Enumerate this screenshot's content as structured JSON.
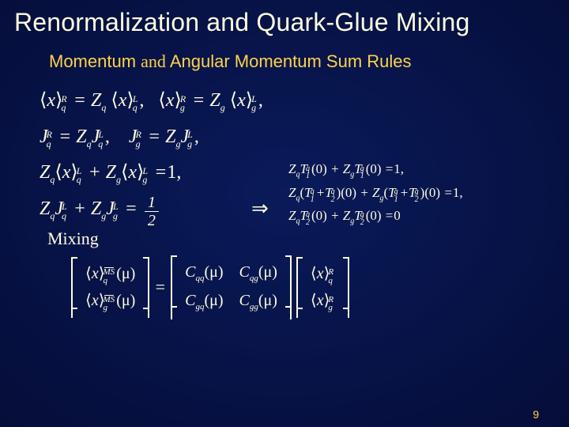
{
  "colors": {
    "title": "#fffde0",
    "accent": "#ffd24a",
    "body": "#fffde0",
    "bg_center": "#0a1a5a",
    "bg_mid": "#061040",
    "bg_edge": "#030820"
  },
  "typography": {
    "title_font": "Arial",
    "title_size_pt": 24,
    "subtitle_font": "Arial",
    "subtitle_size_pt": 17,
    "math_font": "Times New Roman",
    "math_size_pt": 18,
    "rhs_math_size_pt": 13
  },
  "title": "Renormalization and Quark-Glue Mixing",
  "subtitle": {
    "pre": "Momentum ",
    "and": "and",
    "post": " Angular Momentum Sum Rules"
  },
  "eq": {
    "x_q": "⟨x⟩",
    "Z_q": "Z",
    "J": "J",
    "line1_a": "=",
    "line1_b": ",",
    "line1_c": "=",
    "line1_d": ",",
    "line2_a": "=",
    "line2_b": ",",
    "line2_c": "=",
    "line2_d": ",",
    "line3_eq": "=",
    "line3_one": "1,",
    "line4_eq": "=",
    "frac_n": "1",
    "frac_d": "2",
    "arrow": "⇒"
  },
  "rhs": {
    "r1_eq": "=",
    "r1_end": "1,",
    "r2_eq": "=",
    "r2_end": "1,",
    "r3_eq": "=",
    "r3_end": "0"
  },
  "mixing_label": "Mixing",
  "matrix": {
    "eq": "=",
    "a": {
      "r1": "⟨x⟩",
      "r2": "⟨x⟩",
      "sup": "MS",
      "sub_q": "q",
      "sub_g": "g",
      "mu": "(μ)"
    },
    "C": {
      "qq": "C",
      "qg": "C",
      "gq": "C",
      "gg": "C",
      "sub_qq": "qq",
      "sub_qg": "qg",
      "sub_gq": "gq",
      "sub_gg": "gg",
      "mu": "(μ)"
    },
    "b": {
      "r1": "⟨x⟩",
      "r2": "⟨x⟩",
      "sup": "R",
      "sub_q": "q",
      "sub_g": "g"
    }
  },
  "sym": {
    "x": "x",
    "Z": "Z",
    "J": "J",
    "T": "T",
    "plus": "+",
    "lpar": "(",
    "rpar": ")",
    "zero": "0",
    "q": "q",
    "g": "g",
    "R": "R",
    "L": "L",
    "one": "1",
    "two": "2"
  },
  "page_number": "9"
}
